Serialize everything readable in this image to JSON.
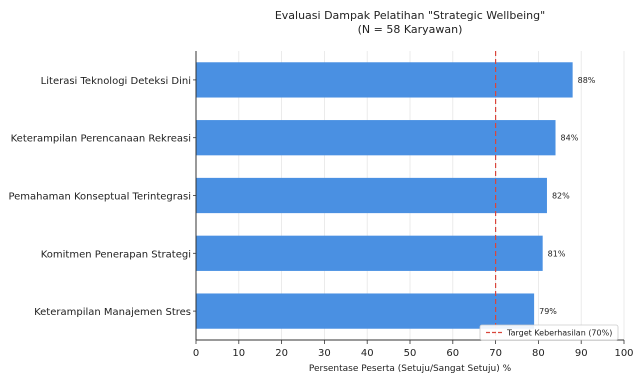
{
  "chart_data": {
    "type": "bar",
    "orientation": "horizontal",
    "title_lines": [
      "Evaluasi Dampak Pelatihan \"Strategic Wellbeing\"",
      "(N = 58 Karyawan)"
    ],
    "categories": [
      "Literasi Teknologi Deteksi Dini",
      "Keterampilan Perencanaan Rekreasi",
      "Pemahaman Konseptual Terintegrasi",
      "Komitmen Penerapan Strategi",
      "Keterampilan Manajemen Stres"
    ],
    "values": [
      88,
      84,
      82,
      81,
      79
    ],
    "data_labels": [
      "88%",
      "84%",
      "82%",
      "81%",
      "79%"
    ],
    "xlabel": "Persentase Peserta (Setuju/Sangat Setuju) %",
    "xlim": [
      0,
      100
    ],
    "x_ticks": [
      0,
      10,
      20,
      30,
      40,
      50,
      60,
      70,
      80,
      90,
      100
    ],
    "grid": "vertical",
    "bar_color": "#4a90e2",
    "target_line": {
      "value": 70,
      "label": "Target Keberhasilan (70%)",
      "color": "#d9463b",
      "style": "dashed"
    },
    "legend_position": "bottom-right"
  }
}
